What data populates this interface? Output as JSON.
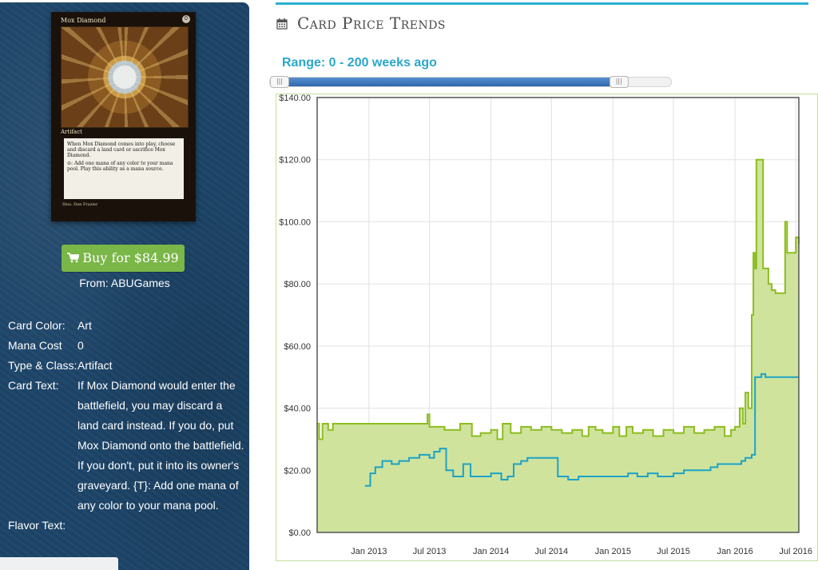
{
  "card": {
    "title": "Mox Diamond",
    "mana_symbol": "0",
    "type_line": "Artifact",
    "text": "When Mox Diamond comes into play, choose and discard a land card or sacrifice Mox Diamond.",
    "text2": "⊙: Add one mana of any color to your mana pool. Play this ability as a mana source.",
    "illus": "Illus. Dan Frazier"
  },
  "buy": {
    "label": "Buy for $84.99",
    "cart_icon": "🛒",
    "from": "From: ABUGames",
    "color": "#7ab648"
  },
  "properties": [
    {
      "label": "Card Color:",
      "value": "Art"
    },
    {
      "label": "Mana Cost",
      "value": "0"
    },
    {
      "label": "Type & Class:",
      "value": "Artifact"
    },
    {
      "label": "Card Text:",
      "value": "If Mox Diamond would enter the battlefield, you may discard a land card instead. If you do, put Mox Diamond onto the battlefield. If you don't, put it into its owner's graveyard. {T}: Add one mana of any color to your mana pool."
    },
    {
      "label": "Flavor Text:",
      "value": ""
    }
  ],
  "section": {
    "title": "Card Price Trends",
    "icon": "calendar-icon",
    "accent": "#2ab1d3"
  },
  "range": {
    "label": "Range: 0 - 200 weeks ago",
    "min_weeks": 0,
    "max_weeks": 200,
    "slider_fill_fraction": 0.87,
    "handle_glyph": "|||"
  },
  "chart_data": {
    "type": "area",
    "x_domain": [
      "2012-07-30",
      "2016-07-10"
    ],
    "ylim": [
      0,
      140
    ],
    "grid": true,
    "y_ticks": [
      "$0.00",
      "$20.00",
      "$40.00",
      "$60.00",
      "$80.00",
      "$100.00",
      "$120.00",
      "$140.00"
    ],
    "x_ticks": [
      {
        "label": "Jan 2013",
        "date": "2013-01-01"
      },
      {
        "label": "Jul 2013",
        "date": "2013-07-01"
      },
      {
        "label": "Jan 2014",
        "date": "2014-01-01"
      },
      {
        "label": "Jul 2014",
        "date": "2014-07-01"
      },
      {
        "label": "Jan 2015",
        "date": "2015-01-01"
      },
      {
        "label": "Jul 2015",
        "date": "2015-07-01"
      },
      {
        "label": "Jan 2016",
        "date": "2016-01-01"
      },
      {
        "label": "Jul 2016",
        "date": "2016-07-01"
      }
    ],
    "series": [
      {
        "color": "#8cbd1f",
        "fill": "#cfe39d",
        "points": [
          [
            "2012-07-30",
            35
          ],
          [
            "2012-08-05",
            30
          ],
          [
            "2012-08-15",
            35
          ],
          [
            "2012-09-01",
            33
          ],
          [
            "2012-09-15",
            35
          ],
          [
            "2013-01-01",
            35
          ],
          [
            "2013-06-01",
            35
          ],
          [
            "2013-06-25",
            38
          ],
          [
            "2013-07-01",
            34
          ],
          [
            "2013-08-15",
            33
          ],
          [
            "2013-09-20",
            33
          ],
          [
            "2013-10-01",
            35
          ],
          [
            "2013-11-05",
            31
          ],
          [
            "2013-12-01",
            32
          ],
          [
            "2014-01-01",
            33
          ],
          [
            "2014-01-20",
            30
          ],
          [
            "2014-02-05",
            35
          ],
          [
            "2014-03-01",
            32
          ],
          [
            "2014-04-01",
            34
          ],
          [
            "2014-05-01",
            33
          ],
          [
            "2014-06-01",
            34
          ],
          [
            "2014-07-01",
            33
          ],
          [
            "2014-08-01",
            32
          ],
          [
            "2014-09-01",
            33
          ],
          [
            "2014-10-01",
            31
          ],
          [
            "2014-10-20",
            34
          ],
          [
            "2014-11-10",
            33
          ],
          [
            "2014-12-01",
            32
          ],
          [
            "2015-01-01",
            34
          ],
          [
            "2015-01-20",
            31
          ],
          [
            "2015-02-10",
            34
          ],
          [
            "2015-03-01",
            32
          ],
          [
            "2015-04-01",
            33
          ],
          [
            "2015-05-01",
            31
          ],
          [
            "2015-06-01",
            33
          ],
          [
            "2015-07-01",
            32
          ],
          [
            "2015-08-01",
            34
          ],
          [
            "2015-09-01",
            32
          ],
          [
            "2015-10-01",
            33
          ],
          [
            "2015-11-01",
            34
          ],
          [
            "2015-12-01",
            31
          ],
          [
            "2015-12-20",
            33
          ],
          [
            "2016-01-01",
            34
          ],
          [
            "2016-01-15",
            40
          ],
          [
            "2016-01-25",
            35
          ],
          [
            "2016-02-01",
            45
          ],
          [
            "2016-02-10",
            40
          ],
          [
            "2016-02-20",
            70
          ],
          [
            "2016-02-25",
            90
          ],
          [
            "2016-03-01",
            85
          ],
          [
            "2016-03-05",
            120
          ],
          [
            "2016-03-20",
            120
          ],
          [
            "2016-03-25",
            85
          ],
          [
            "2016-04-10",
            80
          ],
          [
            "2016-04-20",
            78
          ],
          [
            "2016-05-01",
            77
          ],
          [
            "2016-05-25",
            77
          ],
          [
            "2016-05-30",
            100
          ],
          [
            "2016-06-05",
            90
          ],
          [
            "2016-06-25",
            90
          ],
          [
            "2016-07-01",
            95
          ],
          [
            "2016-07-10",
            93
          ]
        ]
      },
      {
        "color": "#1ba3c6",
        "points": [
          [
            "2012-12-20",
            15
          ],
          [
            "2013-01-05",
            19
          ],
          [
            "2013-01-20",
            21
          ],
          [
            "2013-02-10",
            23
          ],
          [
            "2013-03-10",
            22
          ],
          [
            "2013-04-01",
            23
          ],
          [
            "2013-05-01",
            24
          ],
          [
            "2013-06-01",
            25
          ],
          [
            "2013-07-01",
            24
          ],
          [
            "2013-07-15",
            26
          ],
          [
            "2013-08-01",
            27
          ],
          [
            "2013-08-20",
            20
          ],
          [
            "2013-09-10",
            18
          ],
          [
            "2013-10-10",
            22
          ],
          [
            "2013-11-01",
            18
          ],
          [
            "2013-12-10",
            18
          ],
          [
            "2014-01-01",
            19
          ],
          [
            "2014-02-01",
            17
          ],
          [
            "2014-02-20",
            18
          ],
          [
            "2014-03-10",
            22
          ],
          [
            "2014-04-01",
            23
          ],
          [
            "2014-04-20",
            24
          ],
          [
            "2014-05-10",
            24
          ],
          [
            "2014-06-15",
            24
          ],
          [
            "2014-07-01",
            24
          ],
          [
            "2014-07-20",
            18
          ],
          [
            "2014-08-20",
            17
          ],
          [
            "2014-09-20",
            18
          ],
          [
            "2014-10-15",
            18
          ],
          [
            "2014-12-01",
            18
          ],
          [
            "2015-01-15",
            18
          ],
          [
            "2015-02-15",
            19
          ],
          [
            "2015-03-15",
            18
          ],
          [
            "2015-04-15",
            19
          ],
          [
            "2015-05-15",
            18
          ],
          [
            "2015-06-15",
            18
          ],
          [
            "2015-07-01",
            19
          ],
          [
            "2015-08-01",
            20
          ],
          [
            "2015-09-01",
            20
          ],
          [
            "2015-10-01",
            20
          ],
          [
            "2015-10-20",
            21
          ],
          [
            "2015-11-10",
            22
          ],
          [
            "2015-12-01",
            22
          ],
          [
            "2016-01-01",
            22
          ],
          [
            "2016-01-20",
            23
          ],
          [
            "2016-02-01",
            24
          ],
          [
            "2016-02-20",
            25
          ],
          [
            "2016-03-01",
            50
          ],
          [
            "2016-03-20",
            51
          ],
          [
            "2016-04-01",
            50
          ],
          [
            "2016-05-15",
            50
          ],
          [
            "2016-07-10",
            50
          ]
        ]
      }
    ]
  }
}
